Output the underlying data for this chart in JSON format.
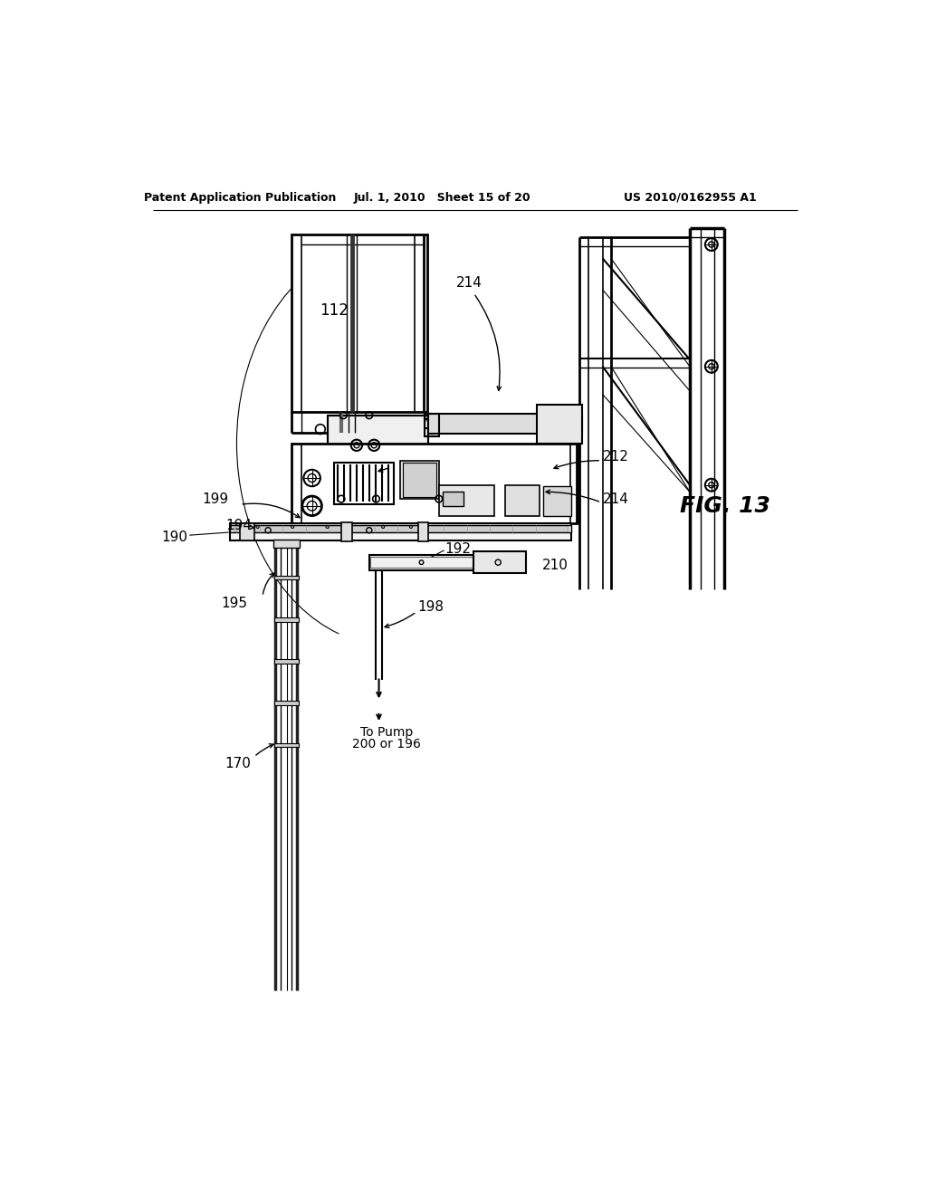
{
  "header_left": "Patent Application Publication",
  "header_mid": "Jul. 1, 2010   Sheet 15 of 20",
  "header_right": "US 2010/0162955 A1",
  "fig_label": "FIG. 13",
  "bg_color": "#ffffff",
  "line_color": "#000000",
  "gray_light": "#cccccc",
  "gray_med": "#888888",
  "gray_dark": "#444444"
}
